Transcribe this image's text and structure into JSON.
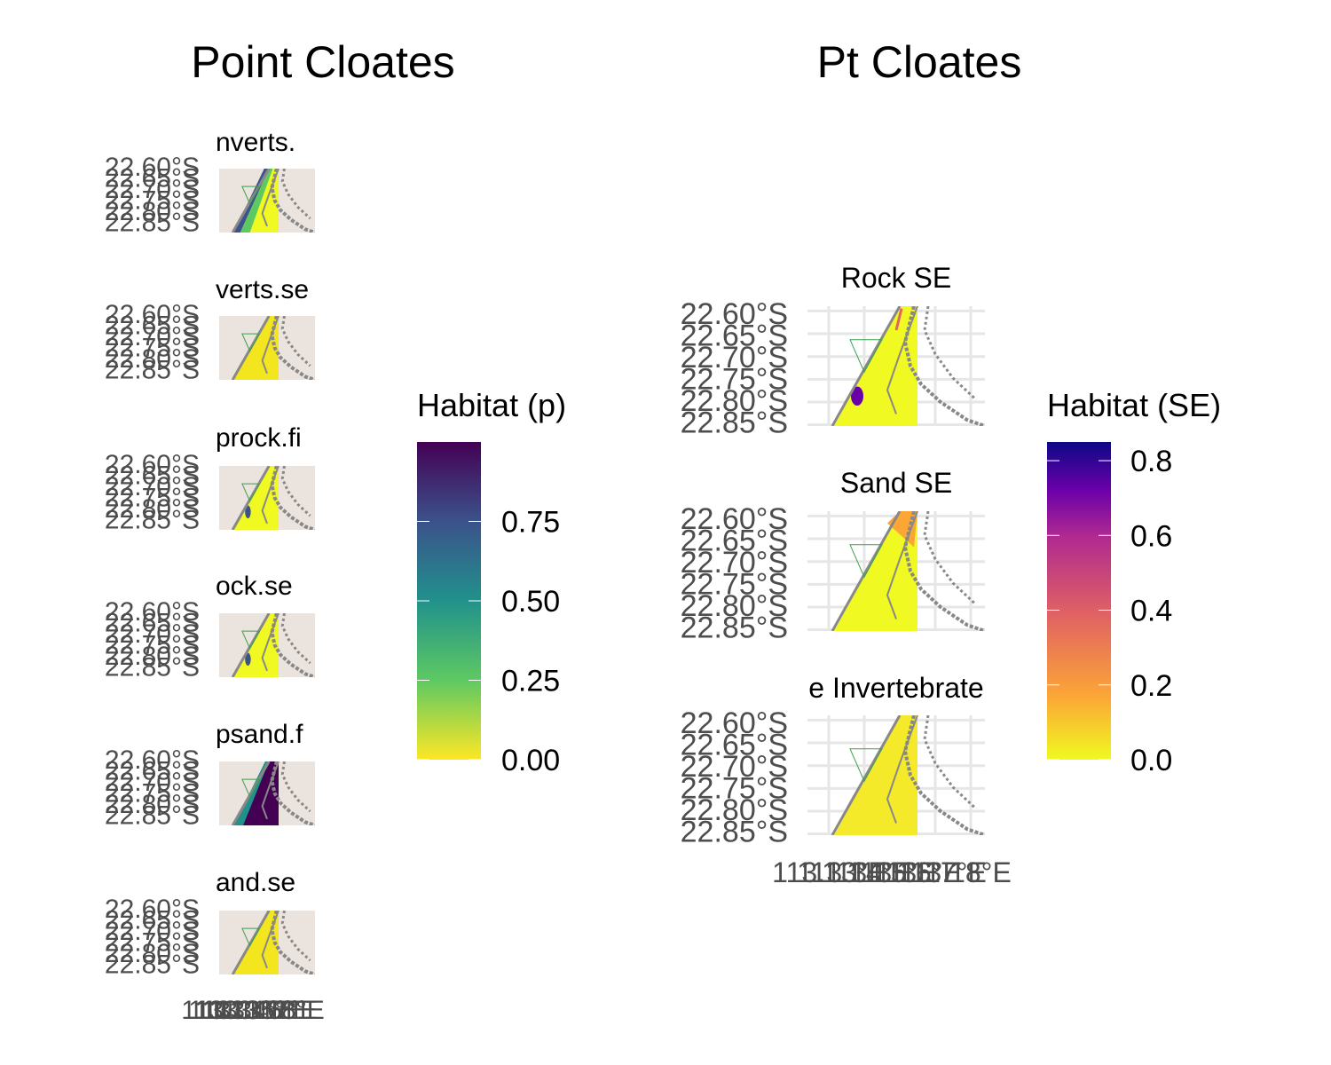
{
  "left_panel": {
    "title": "Point Cloates",
    "legend_title": "Habitat (p)",
    "legend_ticks": [
      "0.00",
      "0.25",
      "0.50",
      "0.75"
    ],
    "legend_colors": [
      "#fde725",
      "#5ec962",
      "#21918c",
      "#3b528b",
      "#440154"
    ]
  },
  "right_panel": {
    "title": "Pt Cloates",
    "legend_title": "Habitat (SE)",
    "legend_ticks": [
      "0.0",
      "0.2",
      "0.4",
      "0.6",
      "0.8"
    ],
    "legend_colors": [
      "#f0f921",
      "#fca636",
      "#e16462",
      "#b12a90",
      "#6a00a8",
      "#0d0887"
    ]
  },
  "chart_data": [
    {
      "type": "heatmap",
      "title": "Point Cloates",
      "facets": [
        "nverts.",
        "verts.se",
        "prock.fi",
        "ock.se",
        "psand.f",
        "and.se"
      ],
      "y_ticks": [
        "22.60°S",
        "22.65°S",
        "22.70°S",
        "22.75°S",
        "22.80°S",
        "22.85°S"
      ],
      "x_ticks": [
        "113.13°E",
        "113.14°E",
        "113.15°E",
        "113.16°E",
        "113.17°E",
        "113.18°E"
      ],
      "legend": {
        "title": "Habitat (p)",
        "range": [
          0,
          1
        ],
        "ticks": [
          0.0,
          0.25,
          0.5,
          0.75
        ],
        "palette": "viridis",
        "placement": "right"
      }
    },
    {
      "type": "heatmap",
      "title": "Pt Cloates",
      "facets": [
        "Rock SE",
        "Sand SE",
        "e Invertebrate"
      ],
      "y_ticks": [
        "22.60°S",
        "22.65°S",
        "22.70°S",
        "22.75°S",
        "22.80°S",
        "22.85°S"
      ],
      "x_ticks": [
        "113.13°E",
        "113.14°E",
        "113.15°E",
        "113.16°E",
        "113.17°E",
        "113.18°E"
      ],
      "legend": {
        "title": "Habitat (SE)",
        "range": [
          0,
          0.85
        ],
        "ticks": [
          0.0,
          0.2,
          0.4,
          0.6,
          0.8
        ],
        "palette": "plasma",
        "placement": "right"
      }
    }
  ]
}
